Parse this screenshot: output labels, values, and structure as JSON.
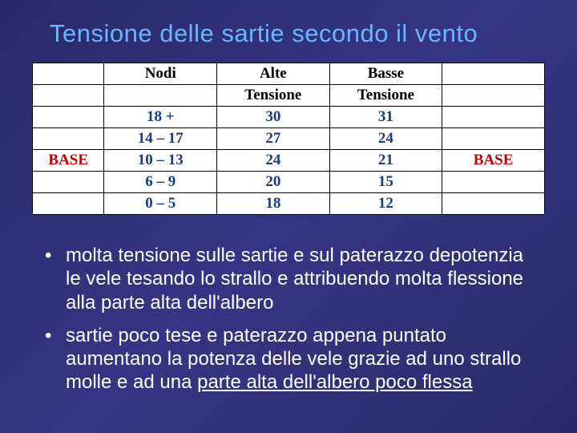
{
  "title": "Tensione delle sartie secondo il vento",
  "table": {
    "headers": {
      "c0": "",
      "c1": "Nodi",
      "c2": "Alte",
      "c3": "Basse",
      "c4": ""
    },
    "subheaders": {
      "c0": "",
      "c1": "",
      "c2": "Tensione",
      "c3": "Tensione",
      "c4": ""
    },
    "rows": [
      {
        "c0": "",
        "c1": "18 +",
        "c2": "30",
        "c3": "31",
        "c4": ""
      },
      {
        "c0": "",
        "c1": "14 – 17",
        "c2": "27",
        "c3": "24",
        "c4": ""
      },
      {
        "c0": "BASE",
        "c1": "10 – 13",
        "c2": "24",
        "c3": "21",
        "c4": "BASE"
      },
      {
        "c0": "",
        "c1": "6 – 9",
        "c2": "20",
        "c3": "15",
        "c4": ""
      },
      {
        "c0": "",
        "c1": "0 – 5",
        "c2": "18",
        "c3": "12",
        "c4": ""
      }
    ],
    "header_color": "#000000",
    "value_color": "#1a3a8a",
    "base_color": "#c00000",
    "bg_color": "#ffffff",
    "border_color": "#000000"
  },
  "bullets": {
    "b1_part1": "molta tensione sulle sartie e sul paterazzo depotenzia le vele tesando lo  strallo e attribuendo molta flessione alla parte alta dell'albero",
    "b2_part1": "sartie poco tese e paterazzo appena puntato aumentano la potenza delle vele grazie ad uno strallo molle e ad una ",
    "b2_underlined": "parte alta dell'albero poco flessa"
  },
  "colors": {
    "title": "#6bb5ff",
    "text": "#ffffff",
    "bg_gradient_from": "#2a2a6a",
    "bg_gradient_to": "#353585"
  }
}
